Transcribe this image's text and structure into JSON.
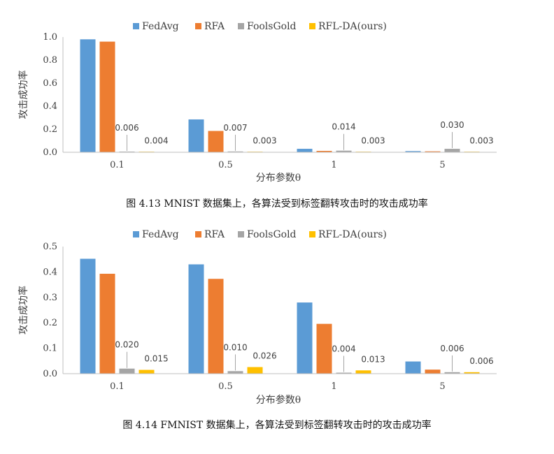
{
  "colors": {
    "FedAvg": "#5b9bd5",
    "RFA": "#ed7d31",
    "FoolsGold": "#a5a5a5",
    "RFL-DA(ours)": "#ffc000"
  },
  "chart_data": [
    {
      "type": "bar",
      "categories": [
        "0.1",
        "0.5",
        "1",
        "5"
      ],
      "xlabel": "分布参数θ",
      "ylabel": "攻击成功率",
      "ylim": [
        0,
        1.0
      ],
      "yticks": [
        "0.0",
        "0.2",
        "0.4",
        "0.6",
        "0.8",
        "1.0"
      ],
      "legend": "top",
      "series": [
        {
          "name": "FedAvg",
          "values": [
            0.98,
            0.285,
            0.03,
            0.01
          ]
        },
        {
          "name": "RFA",
          "values": [
            0.96,
            0.185,
            0.012,
            0.008
          ]
        },
        {
          "name": "FoolsGold",
          "values": [
            0.006,
            0.007,
            0.014,
            0.03
          ]
        },
        {
          "name": "RFL-DA(ours)",
          "values": [
            0.004,
            0.003,
            0.003,
            0.003
          ]
        }
      ],
      "annotations": [
        {
          "series": "FoolsGold",
          "category": "0.1",
          "text": "0.006"
        },
        {
          "series": "RFL-DA(ours)",
          "category": "0.1",
          "text": "0.004"
        },
        {
          "series": "FoolsGold",
          "category": "0.5",
          "text": "0.007"
        },
        {
          "series": "RFL-DA(ours)",
          "category": "0.5",
          "text": "0.003"
        },
        {
          "series": "FoolsGold",
          "category": "1",
          "text": "0.014"
        },
        {
          "series": "RFL-DA(ours)",
          "category": "1",
          "text": "0.003"
        },
        {
          "series": "FoolsGold",
          "category": "5",
          "text": "0.030"
        },
        {
          "series": "RFL-DA(ours)",
          "category": "5",
          "text": "0.003"
        }
      ],
      "caption": "图 4.13 MNIST 数据集上，各算法受到标签翻转攻击时的攻击成功率"
    },
    {
      "type": "bar",
      "categories": [
        "0.1",
        "0.5",
        "1",
        "5"
      ],
      "xlabel": "分布参数θ",
      "ylabel": "攻击成功率",
      "ylim": [
        0,
        0.5
      ],
      "yticks": [
        "0.0",
        "0.1",
        "0.2",
        "0.3",
        "0.4",
        "0.5"
      ],
      "legend": "top",
      "series": [
        {
          "name": "FedAvg",
          "values": [
            0.452,
            0.43,
            0.28,
            0.048
          ]
        },
        {
          "name": "RFA",
          "values": [
            0.393,
            0.373,
            0.196,
            0.016
          ]
        },
        {
          "name": "FoolsGold",
          "values": [
            0.02,
            0.01,
            0.004,
            0.006
          ]
        },
        {
          "name": "RFL-DA(ours)",
          "values": [
            0.015,
            0.026,
            0.013,
            0.006
          ]
        }
      ],
      "annotations": [
        {
          "series": "FoolsGold",
          "category": "0.1",
          "text": "0.020"
        },
        {
          "series": "RFL-DA(ours)",
          "category": "0.1",
          "text": "0.015"
        },
        {
          "series": "FoolsGold",
          "category": "0.5",
          "text": "0.010"
        },
        {
          "series": "RFL-DA(ours)",
          "category": "0.5",
          "text": "0.026"
        },
        {
          "series": "FoolsGold",
          "category": "1",
          "text": "0.004"
        },
        {
          "series": "RFL-DA(ours)",
          "category": "1",
          "text": "0.013"
        },
        {
          "series": "FoolsGold",
          "category": "5",
          "text": "0.006"
        },
        {
          "series": "RFL-DA(ours)",
          "category": "5",
          "text": "0.006"
        }
      ],
      "caption": "图 4.14 FMNIST 数据集上，各算法受到标签翻转攻击时的攻击成功率"
    }
  ]
}
